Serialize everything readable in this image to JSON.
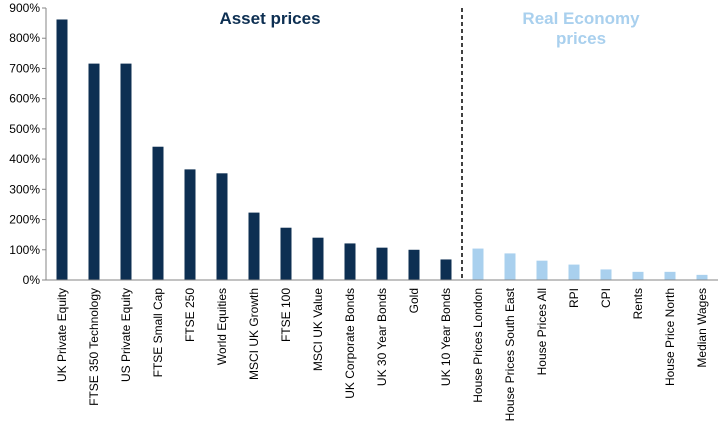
{
  "chart_data": {
    "type": "bar",
    "ylim": [
      0,
      900
    ],
    "yticks": [
      0,
      100,
      200,
      300,
      400,
      500,
      600,
      700,
      800,
      900
    ],
    "ytick_labels": [
      "0%",
      "100%",
      "200%",
      "300%",
      "400%",
      "500%",
      "600%",
      "700%",
      "800%",
      "900%"
    ],
    "grid": false,
    "sections": [
      {
        "title": "Asset prices",
        "color": "#0d2f52"
      },
      {
        "title": "Real Economy prices",
        "title_lines": [
          "Real Economy",
          "prices"
        ],
        "color": "#a9d0ee"
      }
    ],
    "bars": [
      {
        "label": "UK Private Equity",
        "value": 862,
        "section": 0
      },
      {
        "label": "FTSE 350 Technology",
        "value": 716,
        "section": 0
      },
      {
        "label": "US Private Equity",
        "value": 716,
        "section": 0
      },
      {
        "label": "FTSE Small Cap",
        "value": 441,
        "section": 0
      },
      {
        "label": "FTSE 250",
        "value": 366,
        "section": 0
      },
      {
        "label": "World Equities",
        "value": 353,
        "section": 0
      },
      {
        "label": "MSCI UK Growth",
        "value": 223,
        "section": 0
      },
      {
        "label": "FTSE 100",
        "value": 173,
        "section": 0
      },
      {
        "label": "MSCI UK Value",
        "value": 140,
        "section": 0
      },
      {
        "label": "UK Corporate Bonds",
        "value": 121,
        "section": 0
      },
      {
        "label": "UK 30 Year Bonds",
        "value": 107,
        "section": 0
      },
      {
        "label": "Gold",
        "value": 100,
        "section": 0
      },
      {
        "label": "UK 10 Year Bonds",
        "value": 68,
        "section": 0
      },
      {
        "label": "House Prices London",
        "value": 104,
        "section": 1
      },
      {
        "label": "House Prices South East",
        "value": 88,
        "section": 1
      },
      {
        "label": "House Prices All",
        "value": 64,
        "section": 1
      },
      {
        "label": "RPI",
        "value": 51,
        "section": 1
      },
      {
        "label": "CPI",
        "value": 35,
        "section": 1
      },
      {
        "label": "Rents",
        "value": 27,
        "section": 1
      },
      {
        "label": "House Price North",
        "value": 27,
        "section": 1
      },
      {
        "label": "Median Wages",
        "value": 17,
        "section": 1
      }
    ],
    "divider_after_index": 12
  }
}
